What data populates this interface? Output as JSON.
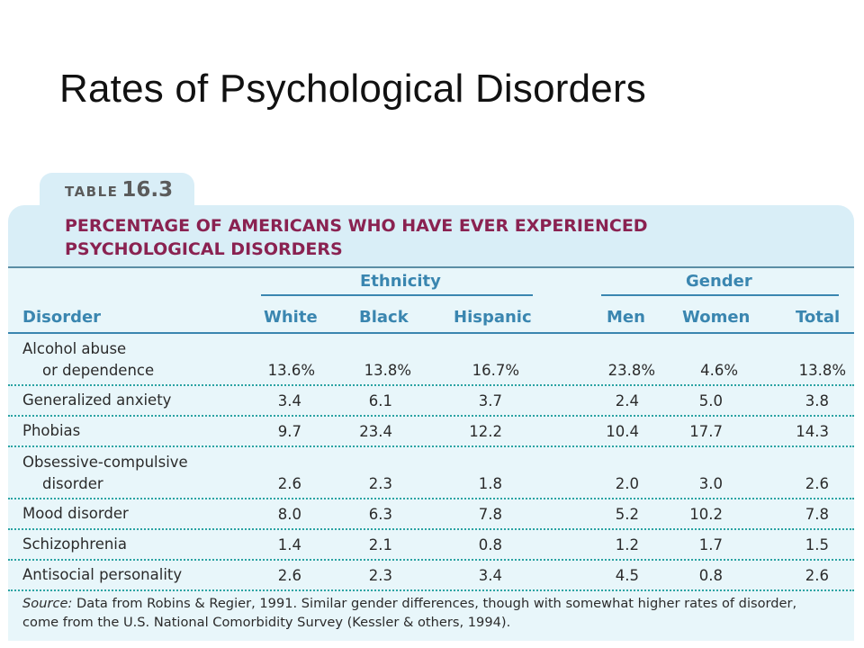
{
  "slide_title": "Rates of Psychological Disorders",
  "table_tab": {
    "label": "TABLE",
    "number": "16.3"
  },
  "caption": [
    "PERCENTAGE OF AMERICANS WHO HAVE EVER EXPERIENCED",
    "PSYCHOLOGICAL DISORDERS"
  ],
  "group_headers": {
    "ethnicity": "Ethnicity",
    "gender": "Gender"
  },
  "columns": [
    "Disorder",
    "White",
    "Black",
    "Hispanic",
    "Men",
    "Women",
    "Total"
  ],
  "rows": [
    {
      "label": [
        "Alcohol abuse",
        "or dependence"
      ],
      "values": [
        "13.6%",
        "13.8%",
        "16.7%",
        "23.8%",
        "4.6%",
        "13.8%"
      ]
    },
    {
      "label": [
        "Generalized anxiety"
      ],
      "values": [
        "3.4",
        "6.1",
        "3.7",
        "2.4",
        "5.0",
        "3.8"
      ]
    },
    {
      "label": [
        "Phobias"
      ],
      "values": [
        "9.7",
        "23.4",
        "12.2",
        "10.4",
        "17.7",
        "14.3"
      ]
    },
    {
      "label": [
        "Obsessive-compulsive",
        "disorder"
      ],
      "values": [
        "2.6",
        "2.3",
        "1.8",
        "2.0",
        "3.0",
        "2.6"
      ]
    },
    {
      "label": [
        "Mood disorder"
      ],
      "values": [
        "8.0",
        "6.3",
        "7.8",
        "5.2",
        "10.2",
        "7.8"
      ]
    },
    {
      "label": [
        "Schizophrenia"
      ],
      "values": [
        "1.4",
        "2.1",
        "0.8",
        "1.2",
        "1.7",
        "1.5"
      ]
    },
    {
      "label": [
        "Antisocial personality"
      ],
      "values": [
        "2.6",
        "2.3",
        "3.4",
        "4.5",
        "0.8",
        "2.6"
      ]
    }
  ],
  "source": {
    "prefix": "Source:",
    "line1": " Data from Robins & Regier, 1991. Similar gender differences, though with somewhat higher rates of disorder,",
    "line2": "come from the U.S. National Comorbidity Survey (Kessler & others, 1994)."
  },
  "colors": {
    "caption": "#8a2251",
    "header": "#3a86b0",
    "panel": "#d9eef7",
    "body": "#e8f6fa",
    "dots": "#2aa3a3"
  }
}
